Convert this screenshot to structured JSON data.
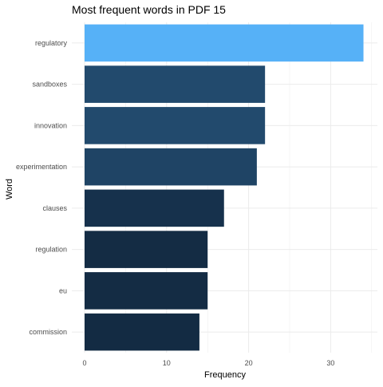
{
  "chart_data": {
    "type": "bar",
    "orientation": "horizontal",
    "title": "Most frequent words in PDF 15",
    "xlabel": "Frequency",
    "ylabel": "Word",
    "categories": [
      "regulatory",
      "sandboxes",
      "innovation",
      "experimentation",
      "clauses",
      "regulation",
      "eu",
      "commission"
    ],
    "values": [
      34,
      22,
      22,
      21,
      17,
      15,
      15,
      14
    ],
    "xlim": [
      0,
      35.7
    ],
    "x_ticks": [
      0,
      10,
      20,
      30
    ],
    "grid": true,
    "legend": "none",
    "color_scale": {
      "low": "#132b43",
      "high": "#56b1f7"
    },
    "background": "#ffffff",
    "grid_color": "#ebebeb"
  }
}
